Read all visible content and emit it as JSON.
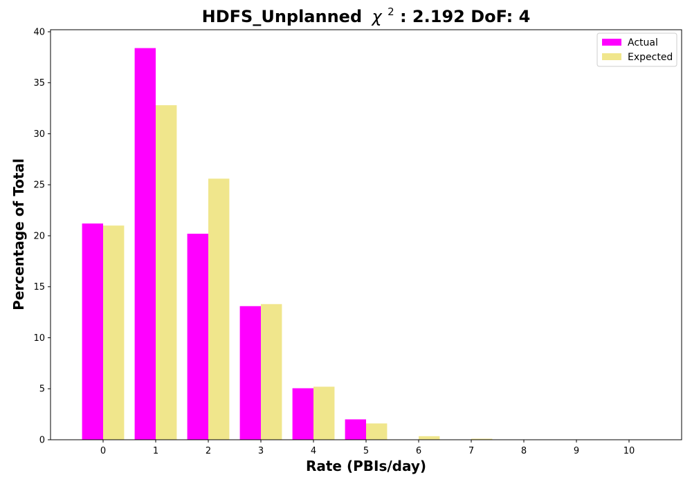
{
  "chart_data": {
    "type": "bar",
    "title": "HDFS_Unplanned",
    "title_chi_symbol": "χ",
    "title_chi_exponent": "2",
    "title_rest": ": 2.192 DoF: 4",
    "xlabel": "Rate (PBIs/day)",
    "ylabel": "Percentage of Total",
    "categories": [
      "0",
      "1",
      "2",
      "3",
      "4",
      "5",
      "6",
      "7",
      "8",
      "9",
      "10"
    ],
    "series": [
      {
        "name": "Actual",
        "color": "#ff00ff",
        "values": [
          21.2,
          38.4,
          20.2,
          13.1,
          5.05,
          2.0,
          0,
          0,
          0,
          0,
          0
        ]
      },
      {
        "name": "Expected",
        "color": "#f0e68c",
        "values": [
          21.0,
          32.8,
          25.6,
          13.3,
          5.2,
          1.6,
          0.35,
          0.1,
          0.03,
          0.01,
          0.0
        ]
      }
    ],
    "xlim": [
      -1,
      11
    ],
    "ylim": [
      0,
      40.2
    ],
    "yticks": [
      0,
      5,
      10,
      15,
      20,
      25,
      30,
      35,
      40
    ],
    "grid": false,
    "legend_position": "top-right"
  }
}
